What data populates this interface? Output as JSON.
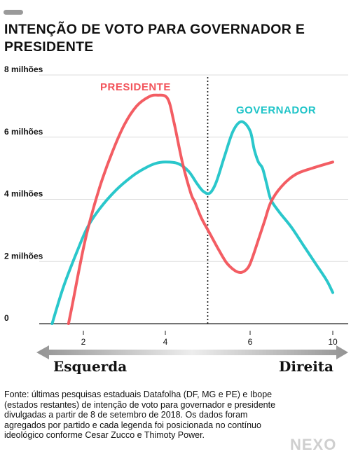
{
  "header": {
    "title": "INTENÇÃO DE VOTO PARA GOVERNADOR E PRESIDENTE"
  },
  "chart_data": {
    "type": "line",
    "title": "INTENÇÃO DE VOTO PARA GOVERNADOR E PRESIDENTE",
    "xlabel": "",
    "ylabel": "",
    "x_ticks": [
      "2",
      "4",
      "6",
      "10"
    ],
    "y_ticks": [
      "0",
      "2 milhões",
      "4 milhões",
      "6 milhões",
      "8 milhões"
    ],
    "ylim": [
      0,
      8
    ],
    "grid": true,
    "axis_arrows": {
      "left": "Esquerda",
      "right": "Direita"
    },
    "reference_line": {
      "x": 5
    },
    "series": [
      {
        "name": "PRESIDENTE",
        "color": "#f2545b",
        "points": [
          [
            1.55,
            0
          ],
          [
            1.7,
            0.8
          ],
          [
            1.9,
            1.9
          ],
          [
            2.1,
            3.0
          ],
          [
            2.4,
            4.4
          ],
          [
            2.7,
            5.5
          ],
          [
            3.0,
            6.4
          ],
          [
            3.3,
            7.0
          ],
          [
            3.6,
            7.3
          ],
          [
            3.8,
            7.35
          ],
          [
            4.05,
            7.25
          ],
          [
            4.2,
            6.5
          ],
          [
            4.4,
            5.2
          ],
          [
            4.6,
            4.2
          ],
          [
            4.7,
            3.9
          ],
          [
            4.85,
            3.4
          ],
          [
            5.05,
            2.9
          ],
          [
            5.25,
            2.4
          ],
          [
            5.45,
            1.95
          ],
          [
            5.65,
            1.7
          ],
          [
            5.8,
            1.65
          ],
          [
            5.95,
            1.8
          ],
          [
            6.1,
            2.1
          ],
          [
            6.4,
            2.7
          ],
          [
            6.7,
            3.3
          ],
          [
            7.0,
            3.9
          ],
          [
            7.5,
            4.4
          ],
          [
            8.2,
            4.8
          ],
          [
            9.0,
            5.0
          ],
          [
            10.0,
            5.2
          ]
        ]
      },
      {
        "name": "GOVERNADOR",
        "color": "#1fc4c8",
        "points": [
          [
            1.05,
            0
          ],
          [
            1.4,
            1.2
          ],
          [
            1.8,
            2.3
          ],
          [
            2.1,
            3.1
          ],
          [
            2.4,
            3.7
          ],
          [
            2.8,
            4.3
          ],
          [
            3.2,
            4.75
          ],
          [
            3.5,
            5.0
          ],
          [
            3.75,
            5.15
          ],
          [
            4.0,
            5.2
          ],
          [
            4.3,
            5.15
          ],
          [
            4.55,
            4.9
          ],
          [
            4.75,
            4.5
          ],
          [
            4.9,
            4.25
          ],
          [
            5.05,
            4.2
          ],
          [
            5.2,
            4.55
          ],
          [
            5.4,
            5.4
          ],
          [
            5.6,
            6.2
          ],
          [
            5.8,
            6.5
          ],
          [
            6.0,
            6.2
          ],
          [
            6.2,
            5.6
          ],
          [
            6.4,
            5.2
          ],
          [
            6.6,
            5.0
          ],
          [
            6.8,
            4.5
          ],
          [
            7.0,
            4.0
          ],
          [
            7.4,
            3.6
          ],
          [
            8.0,
            3.1
          ],
          [
            8.6,
            2.5
          ],
          [
            9.2,
            1.9
          ],
          [
            9.7,
            1.4
          ],
          [
            10.0,
            1.0
          ]
        ]
      }
    ]
  },
  "footer": {
    "source": "Fonte: últimas pesquisas estaduais Datafolha (DF, MG e PE) e Ibope (estados restantes) de intenção de voto para governador e presidente divulgadas a partir de 8 de setembro de 2018. Os dados foram agregados por partido e cada legenda foi posicionada no contínuo ideológico conforme Cesar Zucco e Thimoty Power.",
    "logo": "NEXO"
  }
}
